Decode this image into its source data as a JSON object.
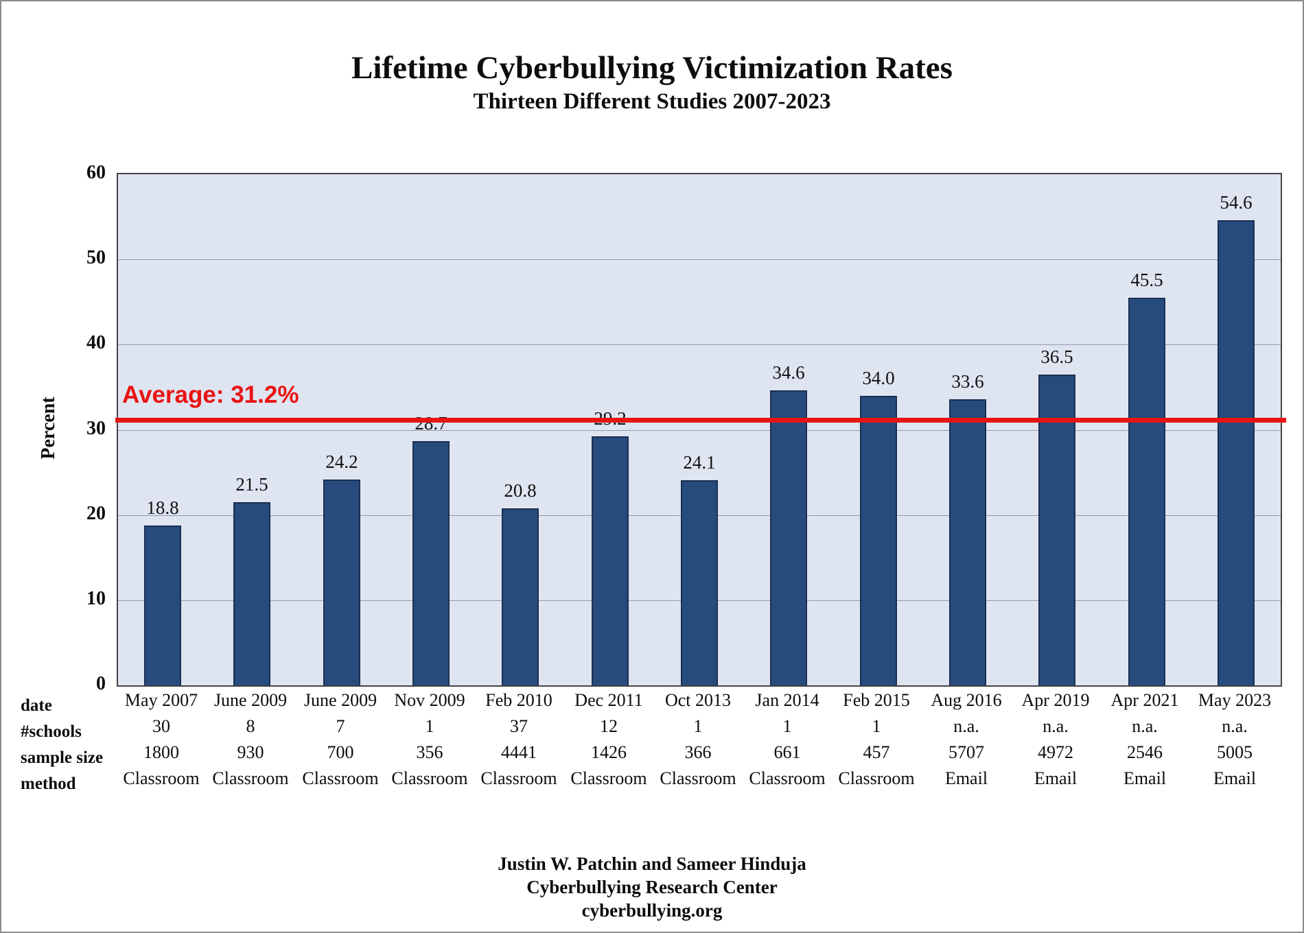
{
  "header": {
    "title": "Lifetime Cyberbullying Victimization Rates",
    "subtitle": "Thirteen Different Studies 2007-2023"
  },
  "chart_data": {
    "type": "bar",
    "title": "Lifetime Cyberbullying Victimization Rates",
    "subtitle": "Thirteen Different Studies 2007-2023",
    "xlabel": "",
    "ylabel": "Percent",
    "ylim": [
      0,
      60
    ],
    "yticks": [
      0,
      10,
      20,
      30,
      40,
      50,
      60
    ],
    "grid": "horizontal",
    "legend": "none",
    "categories": [
      "May 2007",
      "June 2009",
      "June 2009",
      "Nov 2009",
      "Feb 2010",
      "Dec 2011",
      "Oct 2013",
      "Jan 2014",
      "Feb 2015",
      "Aug 2016",
      "Apr 2019",
      "Apr 2021",
      "May 2023"
    ],
    "values": [
      18.8,
      21.5,
      24.2,
      28.7,
      20.8,
      29.2,
      24.1,
      34.6,
      34.0,
      33.6,
      36.5,
      45.5,
      54.6
    ],
    "value_labels": [
      "18.8",
      "21.5",
      "24.2",
      "28.7",
      "20.8",
      "29.2",
      "24.1",
      "34.6",
      "34.0",
      "33.6",
      "36.5",
      "45.5",
      "54.6"
    ],
    "average": 31.2,
    "average_label": "Average: 31.2%",
    "colors": {
      "bar_fill": "#264b7c",
      "bar_border": "#1b2f52",
      "plot_background": "#dee4f0",
      "gridline": "#939cab",
      "average_line": "#e91313",
      "text": "#0d0d0d"
    },
    "table": {
      "rows": [
        {
          "label": "date",
          "values": [
            "May 2007",
            "June 2009",
            "June 2009",
            "Nov 2009",
            "Feb 2010",
            "Dec 2011",
            "Oct 2013",
            "Jan 2014",
            "Feb 2015",
            "Aug 2016",
            "Apr 2019",
            "Apr 2021",
            "May 2023"
          ]
        },
        {
          "label": "#schools",
          "values": [
            "30",
            "8",
            "7",
            "1",
            "37",
            "12",
            "1",
            "1",
            "1",
            "n.a.",
            "n.a.",
            "n.a.",
            "n.a."
          ]
        },
        {
          "label": "sample size",
          "values": [
            "1800",
            "930",
            "700",
            "356",
            "4441",
            "1426",
            "366",
            "661",
            "457",
            "5707",
            "4972",
            "2546",
            "5005"
          ]
        },
        {
          "label": "method",
          "values": [
            "Classroom",
            "Classroom",
            "Classroom",
            "Classroom",
            "Classroom",
            "Classroom",
            "Classroom",
            "Classroom",
            "Classroom",
            "Email",
            "Email",
            "Email",
            "Email"
          ]
        }
      ]
    }
  },
  "footer": {
    "line1": "Justin W. Patchin and Sameer Hinduja",
    "line2": "Cyberbullying Research Center",
    "line3": "cyberbullying.org"
  }
}
